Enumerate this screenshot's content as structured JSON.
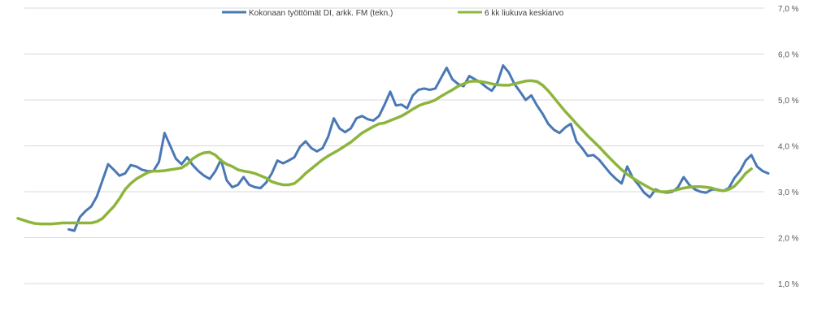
{
  "chart_data": {
    "type": "line",
    "xlabel": "",
    "ylabel": "",
    "ylim": [
      0.01,
      0.07
    ],
    "y_ticks": [
      "1,0 %",
      "2,0 %",
      "3,0 %",
      "4,0 %",
      "5,0 %",
      "6,0 %",
      "7,0 %"
    ],
    "grid": true,
    "legend_position": "top",
    "series": [
      {
        "name": "Kokonaan työttömät DI, arkk. FM (tekn.)",
        "color": "#4a78b5",
        "start_index": 9,
        "values": [
          0.0218,
          0.0215,
          0.0245,
          0.0258,
          0.0268,
          0.029,
          0.0325,
          0.036,
          0.0348,
          0.0335,
          0.034,
          0.0358,
          0.0355,
          0.0348,
          0.0345,
          0.0345,
          0.0365,
          0.0428,
          0.04,
          0.0372,
          0.036,
          0.0375,
          0.0358,
          0.0345,
          0.0335,
          0.0328,
          0.0345,
          0.037,
          0.0325,
          0.031,
          0.0315,
          0.0332,
          0.0315,
          0.031,
          0.0308,
          0.032,
          0.034,
          0.0368,
          0.0362,
          0.0368,
          0.0375,
          0.0398,
          0.041,
          0.0395,
          0.0388,
          0.0395,
          0.042,
          0.046,
          0.0438,
          0.043,
          0.0438,
          0.046,
          0.0465,
          0.0458,
          0.0455,
          0.0465,
          0.049,
          0.0518,
          0.0488,
          0.049,
          0.0482,
          0.051,
          0.0522,
          0.0525,
          0.0522,
          0.0525,
          0.0548,
          0.057,
          0.0545,
          0.0535,
          0.053,
          0.0552,
          0.0545,
          0.0538,
          0.0528,
          0.052,
          0.0538,
          0.0575,
          0.056,
          0.0535,
          0.0518,
          0.05,
          0.051,
          0.0488,
          0.047,
          0.0448,
          0.0435,
          0.0428,
          0.044,
          0.0448,
          0.041,
          0.0395,
          0.0378,
          0.038,
          0.037,
          0.0355,
          0.034,
          0.0328,
          0.0318,
          0.0355,
          0.033,
          0.0315,
          0.0298,
          0.0288,
          0.0305,
          0.03,
          0.0298,
          0.03,
          0.031,
          0.0332,
          0.0315,
          0.0305,
          0.03,
          0.0298,
          0.0305,
          0.0305,
          0.0302,
          0.0308,
          0.033,
          0.0345,
          0.0368,
          0.038,
          0.0355,
          0.0345,
          0.034
        ]
      },
      {
        "name": "6 kk liukuva keskiarvo",
        "color": "#8db53c",
        "start_index": 0,
        "values": [
          0.0242,
          0.0238,
          0.0234,
          0.0231,
          0.023,
          0.023,
          0.023,
          0.0231,
          0.0232,
          0.0232,
          0.0232,
          0.0232,
          0.0232,
          0.0232,
          0.0235,
          0.0242,
          0.0255,
          0.0268,
          0.0285,
          0.0305,
          0.0318,
          0.0328,
          0.0335,
          0.0342,
          0.0345,
          0.0345,
          0.0346,
          0.0348,
          0.035,
          0.0352,
          0.036,
          0.0372,
          0.038,
          0.0385,
          0.0386,
          0.038,
          0.0368,
          0.036,
          0.0355,
          0.0348,
          0.0345,
          0.0343,
          0.034,
          0.0335,
          0.033,
          0.0322,
          0.0318,
          0.0315,
          0.0315,
          0.0318,
          0.0328,
          0.034,
          0.035,
          0.036,
          0.037,
          0.0378,
          0.0385,
          0.0392,
          0.04,
          0.0408,
          0.0418,
          0.0428,
          0.0435,
          0.0442,
          0.0448,
          0.045,
          0.0455,
          0.046,
          0.0465,
          0.0472,
          0.048,
          0.0487,
          0.0492,
          0.0495,
          0.05,
          0.0508,
          0.0515,
          0.0522,
          0.053,
          0.0535,
          0.054,
          0.0541,
          0.054,
          0.0538,
          0.0535,
          0.0533,
          0.0532,
          0.0532,
          0.0535,
          0.0538,
          0.0541,
          0.0542,
          0.054,
          0.0532,
          0.052,
          0.0505,
          0.049,
          0.0475,
          0.0462,
          0.0448,
          0.0435,
          0.0422,
          0.041,
          0.0398,
          0.0385,
          0.0372,
          0.036,
          0.0348,
          0.0338,
          0.033,
          0.0322,
          0.0315,
          0.0308,
          0.0302,
          0.03,
          0.03,
          0.0302,
          0.0305,
          0.0308,
          0.031,
          0.0311,
          0.0311,
          0.031,
          0.0308,
          0.0304,
          0.0302,
          0.0305,
          0.0312,
          0.0325,
          0.034,
          0.035
        ]
      }
    ]
  }
}
